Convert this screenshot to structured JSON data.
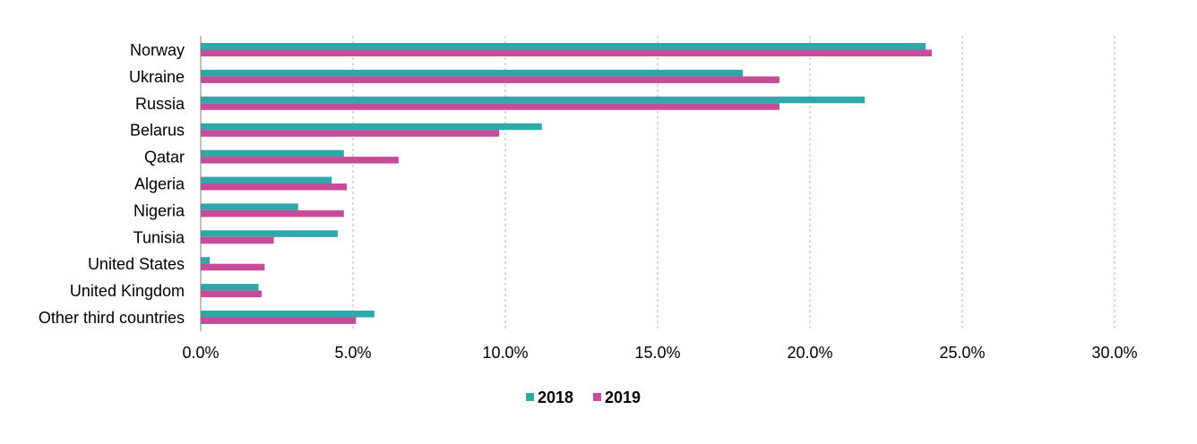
{
  "chart_data": {
    "type": "bar",
    "orientation": "horizontal",
    "categories": [
      "Norway",
      "Ukraine",
      "Russia",
      "Belarus",
      "Qatar",
      "Algeria",
      "Nigeria",
      "Tunisia",
      "United States",
      "United Kingdom",
      "Other third countries"
    ],
    "series": [
      {
        "name": "2018",
        "color": "#2EA8A8",
        "values": [
          23.8,
          17.8,
          21.8,
          11.2,
          4.7,
          4.3,
          3.2,
          4.5,
          0.3,
          1.9,
          5.7
        ]
      },
      {
        "name": "2019",
        "color": "#C64B98",
        "values": [
          24.0,
          19.0,
          19.0,
          9.8,
          6.5,
          4.8,
          4.7,
          2.4,
          2.1,
          2.0,
          5.1
        ]
      }
    ],
    "xlim": [
      0,
      30
    ],
    "xticks": [
      "0.0%",
      "5.0%",
      "10.0%",
      "15.0%",
      "20.0%",
      "25.0%",
      "30.0%"
    ],
    "grid": "vertical dashed",
    "legend_position": "bottom-center",
    "title": "",
    "xlabel": "",
    "ylabel": ""
  }
}
